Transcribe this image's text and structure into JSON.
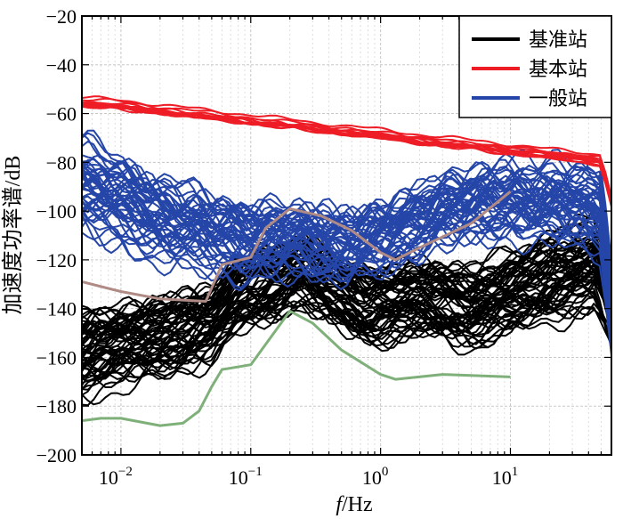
{
  "chart_data": {
    "type": "line",
    "title": "",
    "xlabel_italic": "f",
    "xlabel_rest": "/Hz",
    "ylabel": "加速度功率谱/dB",
    "x_scale": "log",
    "xlim": [
      0.005,
      60
    ],
    "ylim": [
      -200,
      -20
    ],
    "x_ticks": [
      {
        "value": 0.01,
        "base": "10",
        "exp": "−2"
      },
      {
        "value": 0.1,
        "base": "10",
        "exp": "−1"
      },
      {
        "value": 1,
        "base": "10",
        "exp": "0"
      },
      {
        "value": 10,
        "base": "10",
        "exp": "1"
      }
    ],
    "y_ticks": [
      -200,
      -180,
      -160,
      -140,
      -120,
      -100,
      -80,
      -60,
      -40,
      -20
    ],
    "y_tick_labels": [
      "−200",
      "−180",
      "−160",
      "−140",
      "−120",
      "−100",
      "−80",
      "−60",
      "−40",
      "−20"
    ],
    "grid": true,
    "legend_position": "top-right",
    "legend": [
      {
        "label": "基准站",
        "color": "#000000"
      },
      {
        "label": "基本站",
        "color": "#ee1c25"
      },
      {
        "label": "一般站",
        "color": "#2546a8"
      }
    ],
    "series": [
      {
        "name": "基准站",
        "color": "#000000",
        "count": 60,
        "template": [
          [
            0.005,
            -160
          ],
          [
            0.008,
            -156
          ],
          [
            0.02,
            -153
          ],
          [
            0.05,
            -146
          ],
          [
            0.08,
            -135
          ],
          [
            0.15,
            -130
          ],
          [
            0.25,
            -124
          ],
          [
            0.4,
            -132
          ],
          [
            0.8,
            -140
          ],
          [
            2,
            -136
          ],
          [
            5,
            -140
          ],
          [
            10,
            -134
          ],
          [
            20,
            -128
          ],
          [
            45,
            -122
          ],
          [
            60,
            -140
          ]
        ]
      },
      {
        "name": "基本站",
        "color": "#ee1c25",
        "count": 12,
        "template": [
          [
            0.005,
            -55
          ],
          [
            0.01,
            -56
          ],
          [
            0.03,
            -59
          ],
          [
            0.1,
            -62
          ],
          [
            0.3,
            -65
          ],
          [
            1,
            -68
          ],
          [
            3,
            -71
          ],
          [
            10,
            -74
          ],
          [
            30,
            -77
          ],
          [
            50,
            -78
          ],
          [
            60,
            -95
          ]
        ]
      },
      {
        "name": "一般站",
        "color": "#2546a8",
        "count": 50,
        "template": [
          [
            0.005,
            -90
          ],
          [
            0.008,
            -95
          ],
          [
            0.02,
            -103
          ],
          [
            0.05,
            -110
          ],
          [
            0.1,
            -112
          ],
          [
            0.2,
            -112
          ],
          [
            0.5,
            -114
          ],
          [
            1,
            -112
          ],
          [
            3,
            -100
          ],
          [
            10,
            -96
          ],
          [
            30,
            -98
          ],
          [
            50,
            -100
          ],
          [
            60,
            -140
          ]
        ]
      }
    ],
    "reference_curves": [
      {
        "color": "#b08a84",
        "points": [
          [
            0.005,
            -129
          ],
          [
            0.01,
            -133
          ],
          [
            0.02,
            -136
          ],
          [
            0.045,
            -137
          ],
          [
            0.06,
            -122
          ],
          [
            0.1,
            -119
          ],
          [
            0.13,
            -107
          ],
          [
            0.2,
            -99
          ],
          [
            0.35,
            -102
          ],
          [
            0.6,
            -108
          ],
          [
            1,
            -117
          ],
          [
            1.3,
            -120
          ],
          [
            2,
            -115
          ],
          [
            5,
            -105
          ],
          [
            10,
            -92
          ]
        ]
      },
      {
        "color": "#7fb07a",
        "points": [
          [
            0.005,
            -186
          ],
          [
            0.007,
            -185
          ],
          [
            0.01,
            -185
          ],
          [
            0.02,
            -188
          ],
          [
            0.03,
            -187
          ],
          [
            0.04,
            -182
          ],
          [
            0.05,
            -172
          ],
          [
            0.06,
            -165
          ],
          [
            0.1,
            -163
          ],
          [
            0.2,
            -141
          ],
          [
            0.3,
            -146
          ],
          [
            0.5,
            -157
          ],
          [
            1,
            -167
          ],
          [
            1.3,
            -169
          ],
          [
            3,
            -167
          ],
          [
            10,
            -168
          ]
        ]
      }
    ]
  }
}
